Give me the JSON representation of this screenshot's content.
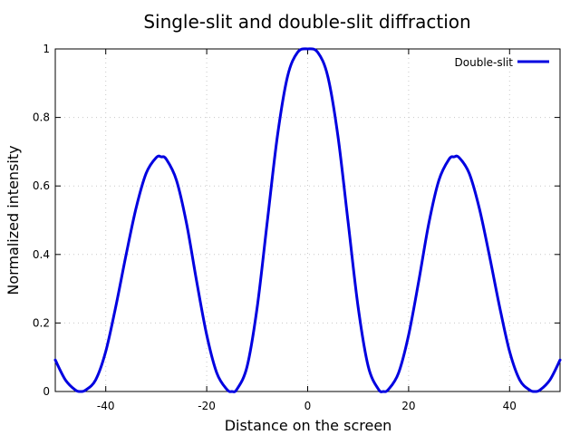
{
  "chart_data": {
    "type": "line",
    "title": "Single-slit and double-slit diffraction",
    "xlabel": "Distance on the screen",
    "ylabel": "Normalized intensity",
    "xlim": [
      -50,
      50
    ],
    "ylim": [
      0,
      1
    ],
    "xticks": [
      -40,
      -20,
      0,
      20,
      40
    ],
    "yticks": [
      0,
      0.2,
      0.4,
      0.6,
      0.8,
      1
    ],
    "grid": true,
    "legend_position": "top-right",
    "series": [
      {
        "name": "Double-slit",
        "color": "#0000e0",
        "x": [
          -50,
          -48,
          -46,
          -45,
          -44,
          -42,
          -40,
          -38,
          -36,
          -34,
          -32,
          -30,
          -29,
          -28,
          -26,
          -24,
          -22,
          -20,
          -18,
          -16,
          -15,
          -14,
          -12,
          -10,
          -8,
          -6,
          -4,
          -2,
          0,
          2,
          4,
          6,
          8,
          10,
          12,
          14,
          15,
          16,
          18,
          20,
          22,
          24,
          26,
          28,
          29,
          30,
          32,
          34,
          36,
          38,
          40,
          42,
          44,
          45,
          46,
          48,
          50
        ],
        "y": [
          0.092,
          0.034,
          0.004,
          0.0,
          0.004,
          0.034,
          0.117,
          0.249,
          0.397,
          0.535,
          0.637,
          0.683,
          0.685,
          0.678,
          0.617,
          0.491,
          0.322,
          0.165,
          0.054,
          0.006,
          0.0,
          0.007,
          0.073,
          0.246,
          0.496,
          0.745,
          0.919,
          0.99,
          1.0,
          0.99,
          0.919,
          0.745,
          0.496,
          0.246,
          0.073,
          0.007,
          0.0,
          0.006,
          0.054,
          0.165,
          0.322,
          0.491,
          0.617,
          0.678,
          0.685,
          0.683,
          0.637,
          0.535,
          0.397,
          0.249,
          0.117,
          0.034,
          0.004,
          0.0,
          0.004,
          0.034,
          0.092
        ]
      }
    ]
  }
}
